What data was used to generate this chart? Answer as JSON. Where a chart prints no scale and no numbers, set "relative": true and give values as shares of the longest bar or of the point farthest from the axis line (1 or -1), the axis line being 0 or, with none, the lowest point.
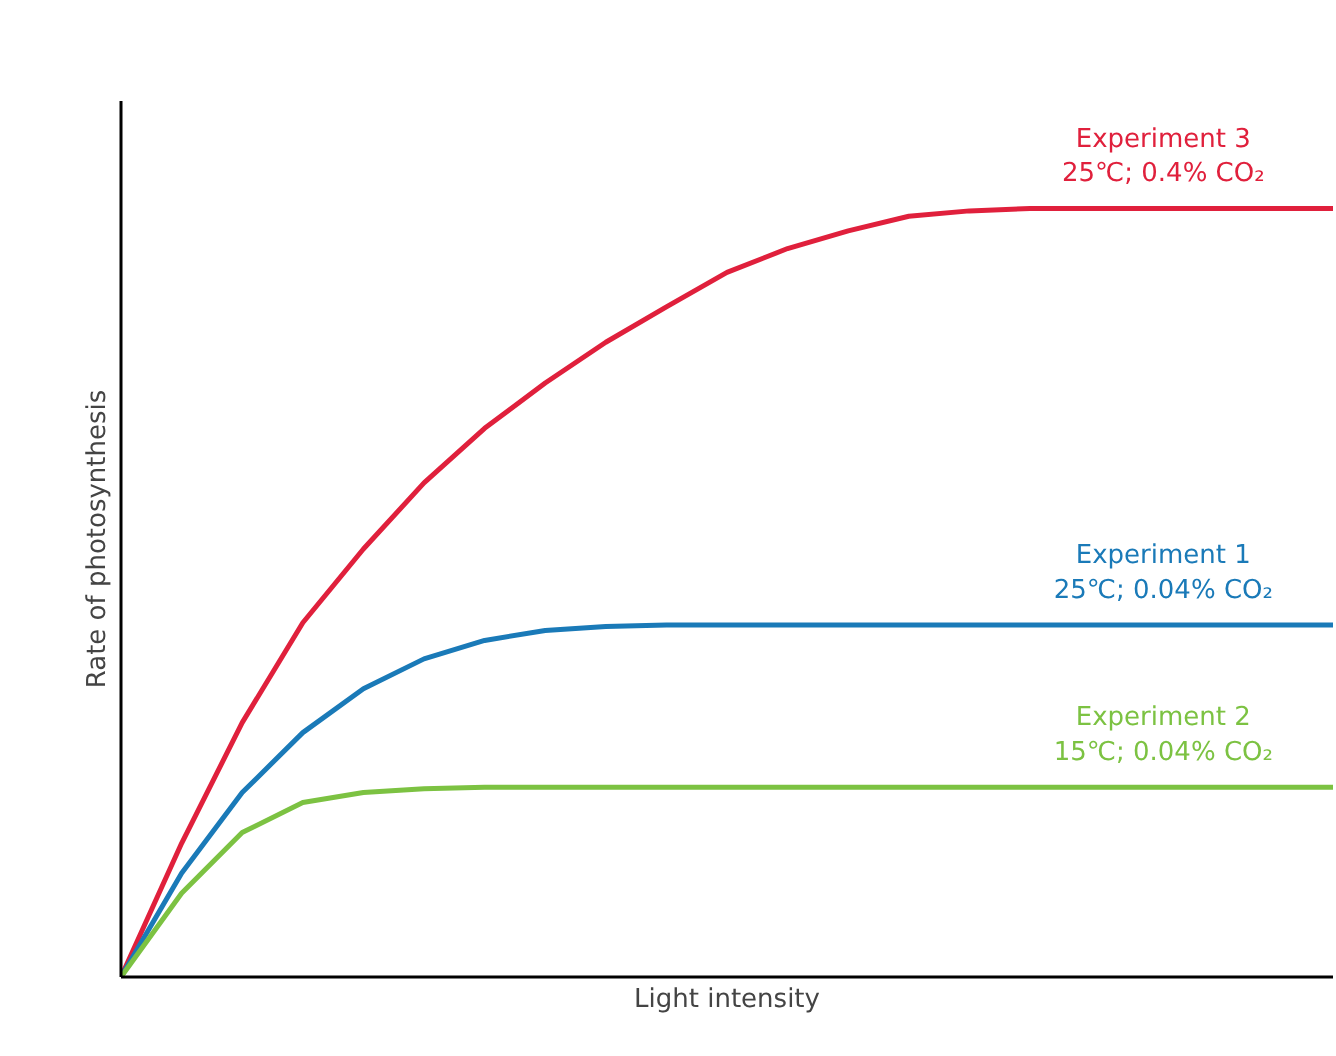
{
  "chart_data": {
    "type": "line",
    "relative": true,
    "xlabel": "Light intensity",
    "ylabel": "Rate of photosynthesis",
    "categories": [
      null,
      null,
      null,
      null,
      null,
      null,
      null,
      null,
      null,
      null,
      null,
      null,
      null,
      null,
      null,
      null,
      null,
      null,
      null,
      null,
      null
    ],
    "series": [
      {
        "name": "Experiment 3\n25℃; 0.4% CO₂",
        "color": "#e0203c",
        "values": [
          0,
          0.174,
          0.331,
          0.461,
          0.557,
          0.643,
          0.714,
          0.773,
          0.826,
          0.872,
          0.917,
          0.948,
          0.971,
          0.99,
          0.997,
          1,
          1,
          1,
          1,
          1,
          1
        ]
      },
      {
        "name": "Experiment 1\n25℃; 0.04% CO₂",
        "color": "#1a7ab8",
        "values": [
          0,
          0.135,
          0.24,
          0.318,
          0.375,
          0.414,
          0.438,
          0.451,
          0.456,
          0.458,
          0.458,
          0.458,
          0.458,
          0.458,
          0.458,
          0.458,
          0.458,
          0.458,
          0.458,
          0.458,
          0.458
        ]
      },
      {
        "name": "Experiment 2\n15℃; 0.04% CO₂",
        "color": "#7cc242",
        "values": [
          0,
          0.109,
          0.188,
          0.227,
          0.24,
          0.245,
          0.247,
          0.247,
          0.247,
          0.247,
          0.247,
          0.247,
          0.247,
          0.247,
          0.247,
          0.247,
          0.247,
          0.247,
          0.247,
          0.247,
          0.247
        ]
      }
    ]
  }
}
